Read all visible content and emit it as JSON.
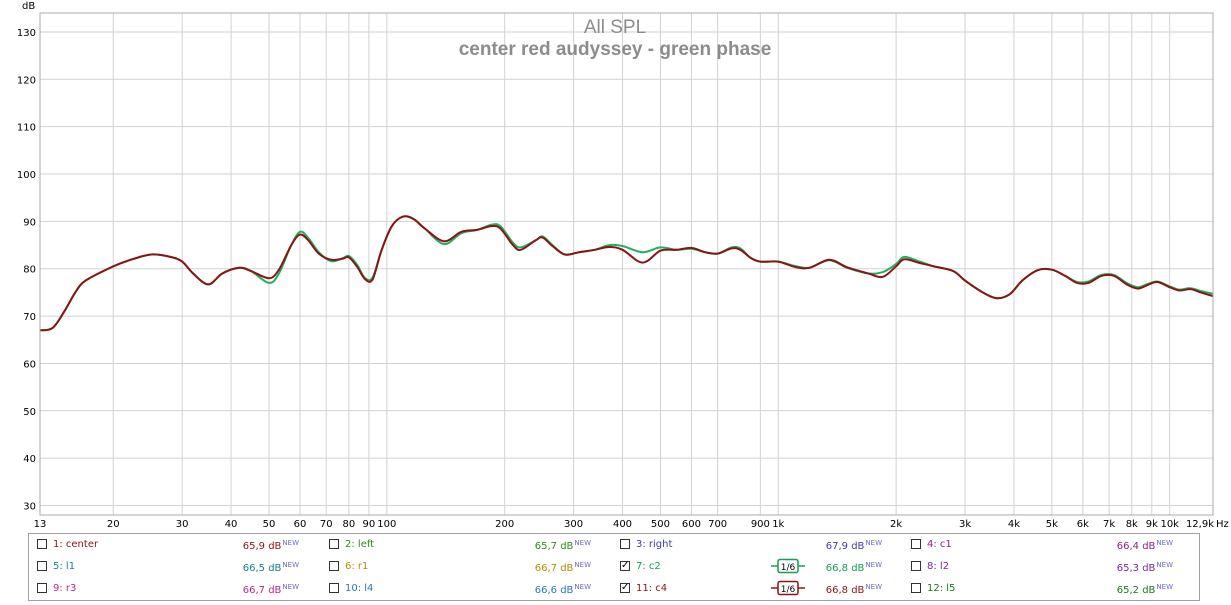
{
  "chart_data": {
    "type": "line",
    "title": "All SPL",
    "subtitle": "center red audyssey - green phase",
    "ylabel": "dB",
    "xunit": "Hz",
    "xscale": "log",
    "xlim": [
      13,
      12900
    ],
    "ylim": [
      28,
      134
    ],
    "grid": true,
    "y_ticks": [
      30,
      40,
      50,
      60,
      70,
      80,
      90,
      100,
      110,
      120,
      130
    ],
    "x_ticks": [
      {
        "v": 13,
        "l": "13"
      },
      {
        "v": 20,
        "l": "20"
      },
      {
        "v": 30,
        "l": "30"
      },
      {
        "v": 40,
        "l": "40"
      },
      {
        "v": 50,
        "l": "50"
      },
      {
        "v": 60,
        "l": "60"
      },
      {
        "v": 70,
        "l": "70"
      },
      {
        "v": 80,
        "l": "80"
      },
      {
        "v": 90,
        "l": "90"
      },
      {
        "v": 100,
        "l": "100"
      },
      {
        "v": 200,
        "l": "200"
      },
      {
        "v": 300,
        "l": "300"
      },
      {
        "v": 400,
        "l": "400"
      },
      {
        "v": 500,
        "l": "500"
      },
      {
        "v": 600,
        "l": "600"
      },
      {
        "v": 700,
        "l": "700"
      },
      {
        "v": 900,
        "l": "900"
      },
      {
        "v": 1000,
        "l": "1k"
      },
      {
        "v": 2000,
        "l": "2k"
      },
      {
        "v": 3000,
        "l": "3k"
      },
      {
        "v": 4000,
        "l": "4k"
      },
      {
        "v": 5000,
        "l": "5k"
      },
      {
        "v": 6000,
        "l": "6k"
      },
      {
        "v": 7000,
        "l": "7k"
      },
      {
        "v": 8000,
        "l": "8k"
      },
      {
        "v": 9000,
        "l": "9k"
      },
      {
        "v": 10000,
        "l": "10k"
      },
      {
        "v": 12900,
        "l": "12,9k"
      }
    ],
    "minor_x": [
      800,
      8000,
      9000
    ],
    "series": [
      {
        "name": "7: c2",
        "color": "#20b060",
        "points": [
          [
            13,
            67
          ],
          [
            14,
            67.5
          ],
          [
            15,
            71
          ],
          [
            16,
            75
          ],
          [
            17,
            77.5
          ],
          [
            20,
            80.5
          ],
          [
            22,
            81.8
          ],
          [
            25,
            83
          ],
          [
            28,
            82.5
          ],
          [
            30,
            81.5
          ],
          [
            32,
            79
          ],
          [
            35,
            76.7
          ],
          [
            38,
            79
          ],
          [
            42,
            80.2
          ],
          [
            45,
            79.5
          ],
          [
            50,
            77
          ],
          [
            53,
            79
          ],
          [
            57,
            85
          ],
          [
            60,
            87.8
          ],
          [
            63,
            86.5
          ],
          [
            67,
            83.5
          ],
          [
            72,
            81.6
          ],
          [
            77,
            82.2
          ],
          [
            80,
            82.7
          ],
          [
            84,
            80.8
          ],
          [
            88,
            78
          ],
          [
            92,
            78.2
          ],
          [
            97,
            84
          ],
          [
            103,
            89
          ],
          [
            110,
            91
          ],
          [
            117,
            90.5
          ],
          [
            125,
            88.5
          ],
          [
            140,
            85.2
          ],
          [
            155,
            87.5
          ],
          [
            170,
            88.2
          ],
          [
            185,
            89.3
          ],
          [
            195,
            89
          ],
          [
            210,
            85.5
          ],
          [
            220,
            84.5
          ],
          [
            240,
            86
          ],
          [
            250,
            86.8
          ],
          [
            265,
            85
          ],
          [
            285,
            83
          ],
          [
            310,
            83.5
          ],
          [
            340,
            84
          ],
          [
            370,
            85
          ],
          [
            400,
            84.8
          ],
          [
            450,
            83.5
          ],
          [
            500,
            84.5
          ],
          [
            550,
            84
          ],
          [
            600,
            84.2
          ],
          [
            650,
            83.5
          ],
          [
            700,
            83.2
          ],
          [
            760,
            84.5
          ],
          [
            800,
            84.3
          ],
          [
            850,
            82.3
          ],
          [
            900,
            81.5
          ],
          [
            1000,
            81.5
          ],
          [
            1100,
            80.6
          ],
          [
            1200,
            80.2
          ],
          [
            1350,
            81.8
          ],
          [
            1500,
            80.2
          ],
          [
            1700,
            79
          ],
          [
            1850,
            79.3
          ],
          [
            2000,
            81
          ],
          [
            2100,
            82.5
          ],
          [
            2300,
            81.5
          ],
          [
            2500,
            80.5
          ],
          [
            2800,
            79.5
          ],
          [
            3000,
            77.5
          ],
          [
            3300,
            75.2
          ],
          [
            3600,
            73.8
          ],
          [
            3900,
            74.6
          ],
          [
            4200,
            77.5
          ],
          [
            4600,
            79.7
          ],
          [
            5000,
            79.8
          ],
          [
            5400,
            78.5
          ],
          [
            5800,
            77.2
          ],
          [
            6200,
            77.3
          ],
          [
            6700,
            78.7
          ],
          [
            7200,
            78.7
          ],
          [
            7800,
            76.9
          ],
          [
            8300,
            76.1
          ],
          [
            8800,
            76.8
          ],
          [
            9300,
            77.3
          ],
          [
            10000,
            76.3
          ],
          [
            10600,
            75.6
          ],
          [
            11300,
            75.9
          ],
          [
            12000,
            75.3
          ],
          [
            12900,
            74.7
          ]
        ]
      },
      {
        "name": "11: c4",
        "color": "#8a1414",
        "points": [
          [
            13,
            67
          ],
          [
            14,
            67.5
          ],
          [
            15,
            71
          ],
          [
            16,
            75
          ],
          [
            17,
            77.5
          ],
          [
            20,
            80.5
          ],
          [
            22,
            81.8
          ],
          [
            25,
            83
          ],
          [
            28,
            82.5
          ],
          [
            30,
            81.5
          ],
          [
            32,
            79
          ],
          [
            35,
            76.7
          ],
          [
            38,
            79
          ],
          [
            42,
            80.2
          ],
          [
            45,
            79.5
          ],
          [
            50,
            78
          ],
          [
            53,
            79.8
          ],
          [
            57,
            85
          ],
          [
            60,
            87.2
          ],
          [
            63,
            86
          ],
          [
            67,
            83.2
          ],
          [
            72,
            81.9
          ],
          [
            77,
            82.1
          ],
          [
            80,
            82.4
          ],
          [
            84,
            80.4
          ],
          [
            88,
            77.8
          ],
          [
            92,
            77.8
          ],
          [
            97,
            84
          ],
          [
            103,
            89
          ],
          [
            110,
            91
          ],
          [
            117,
            90.5
          ],
          [
            125,
            88.5
          ],
          [
            140,
            85.8
          ],
          [
            155,
            87.8
          ],
          [
            170,
            88.2
          ],
          [
            185,
            89
          ],
          [
            195,
            88.5
          ],
          [
            210,
            85
          ],
          [
            220,
            84
          ],
          [
            240,
            86
          ],
          [
            250,
            86.6
          ],
          [
            265,
            84.8
          ],
          [
            285,
            83
          ],
          [
            310,
            83.5
          ],
          [
            340,
            84
          ],
          [
            370,
            84.6
          ],
          [
            400,
            84
          ],
          [
            450,
            81.3
          ],
          [
            500,
            83.8
          ],
          [
            550,
            84
          ],
          [
            600,
            84.4
          ],
          [
            650,
            83.5
          ],
          [
            700,
            83.2
          ],
          [
            760,
            84.3
          ],
          [
            800,
            84
          ],
          [
            850,
            82.3
          ],
          [
            900,
            81.5
          ],
          [
            1000,
            81.5
          ],
          [
            1100,
            80.4
          ],
          [
            1200,
            80.2
          ],
          [
            1350,
            81.9
          ],
          [
            1500,
            80.3
          ],
          [
            1700,
            79
          ],
          [
            1850,
            78.3
          ],
          [
            2000,
            80.5
          ],
          [
            2100,
            82
          ],
          [
            2300,
            81.2
          ],
          [
            2500,
            80.5
          ],
          [
            2800,
            79.5
          ],
          [
            3000,
            77.5
          ],
          [
            3300,
            75.2
          ],
          [
            3600,
            73.8
          ],
          [
            3900,
            74.6
          ],
          [
            4200,
            77.5
          ],
          [
            4600,
            79.7
          ],
          [
            5000,
            79.8
          ],
          [
            5400,
            78.5
          ],
          [
            5800,
            77
          ],
          [
            6200,
            77
          ],
          [
            6700,
            78.5
          ],
          [
            7200,
            78.5
          ],
          [
            7800,
            76.6
          ],
          [
            8300,
            75.8
          ],
          [
            8800,
            76.6
          ],
          [
            9300,
            77.2
          ],
          [
            10000,
            76.1
          ],
          [
            10600,
            75.4
          ],
          [
            11300,
            75.7
          ],
          [
            12000,
            75
          ],
          [
            12900,
            74.2
          ]
        ]
      }
    ]
  },
  "legend": {
    "rows": [
      [
        {
          "label": "1: center",
          "value": "65,9 dB",
          "color": "#8a1414",
          "checked": false
        },
        {
          "label": "2: left",
          "value": "65,7 dB",
          "color": "#2d8c14",
          "checked": false
        },
        {
          "label": "3: right",
          "value": "67,9 dB",
          "color": "#3c3ca0",
          "checked": false
        },
        {
          "label": "4: c1",
          "value": "66,4 dB",
          "color": "#8c1e8c",
          "checked": false
        }
      ],
      [
        {
          "label": "5: l1",
          "value": "66,5 dB",
          "color": "#14828c",
          "checked": false
        },
        {
          "label": "6: r1",
          "value": "66,7 dB",
          "color": "#b48c00",
          "checked": false
        },
        {
          "label": "7: c2",
          "value": "66,8 dB",
          "color": "#14a050",
          "checked": true,
          "smoothing": "1/6"
        },
        {
          "label": "8: l2",
          "value": "65,3 dB",
          "color": "#7a2898",
          "checked": false
        }
      ],
      [
        {
          "label": "9: r3",
          "value": "66,7 dB",
          "color": "#b4288c",
          "checked": false
        },
        {
          "label": "10: l4",
          "value": "66,6 dB",
          "color": "#2878b4",
          "checked": false
        },
        {
          "label": "11: c4",
          "value": "66,8 dB",
          "color": "#8a1414",
          "checked": true,
          "smoothing": "1/6"
        },
        {
          "label": "12: l5",
          "value": "65,2 dB",
          "color": "#1e781e",
          "checked": false
        }
      ]
    ],
    "new_tag": "NEW",
    "check_glyph": "✓"
  }
}
